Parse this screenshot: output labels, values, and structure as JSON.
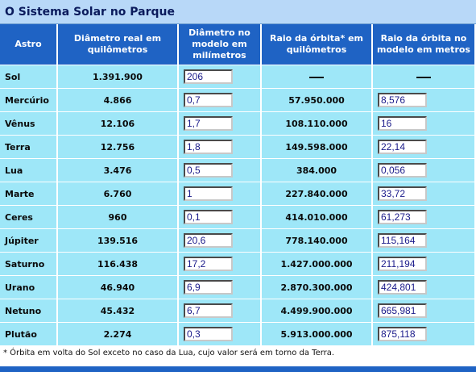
{
  "title": "O Sistema Solar no Parque",
  "headers": [
    "Astro",
    "Diâmetro real em quilômetros",
    "Diâmetro no modelo em milímetros",
    "Raio da órbita* em quilômetros",
    "Raio da órbita no modelo em metros"
  ],
  "rows": [
    {
      "name": "Sol",
      "diam_real": "1.391.900",
      "diam_model": "206",
      "orbit_real": "—",
      "orbit_model": "—"
    },
    {
      "name": "Mercúrio",
      "diam_real": "4.866",
      "diam_model": "0,7",
      "orbit_real": "57.950.000",
      "orbit_model": "8,576"
    },
    {
      "name": "Vênus",
      "diam_real": "12.106",
      "diam_model": "1,7",
      "orbit_real": "108.110.000",
      "orbit_model": "16"
    },
    {
      "name": "Terra",
      "diam_real": "12.756",
      "diam_model": "1,8",
      "orbit_real": "149.598.000",
      "orbit_model": "22,14"
    },
    {
      "name": "Lua",
      "diam_real": "3.476",
      "diam_model": "0,5",
      "orbit_real": "384.000",
      "orbit_model": "0,056"
    },
    {
      "name": "Marte",
      "diam_real": "6.760",
      "diam_model": "1",
      "orbit_real": "227.840.000",
      "orbit_model": "33,72"
    },
    {
      "name": "Ceres",
      "diam_real": "960",
      "diam_model": "0,1",
      "orbit_real": "414.010.000",
      "orbit_model": "61,273"
    },
    {
      "name": "Júpiter",
      "diam_real": "139.516",
      "diam_model": "20,6",
      "orbit_real": "778.140.000",
      "orbit_model": "115,164"
    },
    {
      "name": "Saturno",
      "diam_real": "116.438",
      "diam_model": "17,2",
      "orbit_real": "1.427.000.000",
      "orbit_model": "211,194"
    },
    {
      "name": "Urano",
      "diam_real": "46.940",
      "diam_model": "6,9",
      "orbit_real": "2.870.300.000",
      "orbit_model": "424,801"
    },
    {
      "name": "Netuno",
      "diam_real": "45.432",
      "diam_model": "6,7",
      "orbit_real": "4.499.900.000",
      "orbit_model": "665,981"
    },
    {
      "name": "Plutão",
      "diam_real": "2.274",
      "diam_model": "0,3",
      "orbit_real": "5.913.000.000",
      "orbit_model": "875,118"
    }
  ],
  "footnote": "* Órbita em volta do Sol exceto no caso da Lua, cujo valor será em torno da Terra."
}
